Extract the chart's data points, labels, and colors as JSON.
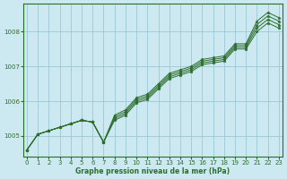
{
  "xlabel": "Graphe pression niveau de la mer (hPa)",
  "background_color": "#cce8f0",
  "grid_color": "#9dc8d8",
  "line_color": "#2d6e2d",
  "marker_color": "#2d6e2d",
  "ylim": [
    1004.4,
    1008.8
  ],
  "xlim": [
    -0.3,
    23.3
  ],
  "yticks": [
    1005,
    1006,
    1007,
    1008
  ],
  "xticks": [
    0,
    1,
    2,
    3,
    4,
    5,
    6,
    7,
    8,
    9,
    10,
    11,
    12,
    13,
    14,
    15,
    16,
    17,
    18,
    19,
    20,
    21,
    22,
    23
  ],
  "series": [
    [
      1004.6,
      1005.05,
      1005.15,
      1005.25,
      1005.35,
      1005.45,
      1005.4,
      1004.82,
      1005.45,
      1005.6,
      1005.95,
      1006.05,
      1006.35,
      1006.65,
      1006.75,
      1006.85,
      1007.05,
      1007.1,
      1007.15,
      1007.5,
      1007.5,
      1008.0,
      1008.25,
      1008.1
    ],
    [
      1004.6,
      1005.05,
      1005.15,
      1005.25,
      1005.35,
      1005.45,
      1005.4,
      1004.82,
      1005.5,
      1005.65,
      1006.0,
      1006.1,
      1006.4,
      1006.7,
      1006.8,
      1006.9,
      1007.1,
      1007.15,
      1007.2,
      1007.55,
      1007.55,
      1008.1,
      1008.35,
      1008.2
    ],
    [
      1004.6,
      1005.05,
      1005.15,
      1005.25,
      1005.35,
      1005.45,
      1005.4,
      1004.82,
      1005.55,
      1005.7,
      1006.05,
      1006.15,
      1006.45,
      1006.75,
      1006.85,
      1006.95,
      1007.15,
      1007.2,
      1007.25,
      1007.6,
      1007.6,
      1008.2,
      1008.45,
      1008.3
    ],
    [
      1004.6,
      1005.05,
      1005.15,
      1005.25,
      1005.35,
      1005.45,
      1005.4,
      1004.82,
      1005.6,
      1005.75,
      1006.1,
      1006.2,
      1006.5,
      1006.8,
      1006.9,
      1007.0,
      1007.2,
      1007.25,
      1007.3,
      1007.65,
      1007.65,
      1008.3,
      1008.55,
      1008.4
    ]
  ]
}
